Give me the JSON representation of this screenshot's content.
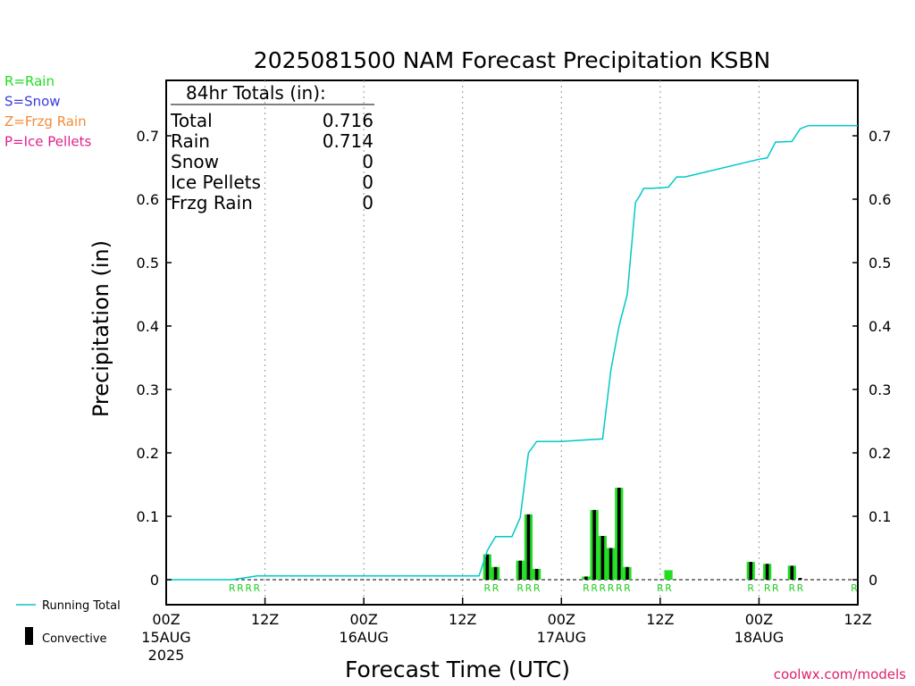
{
  "chart_data": {
    "type": "bar",
    "title": "2025081500 NAM Forecast Precipitation KSBN",
    "xlabel": "Forecast Time (UTC)",
    "ylabel": "Precipitation (in)",
    "ylim": [
      0,
      0.78
    ],
    "xlim_hours": [
      0,
      84
    ],
    "y_ticks": [
      "0",
      "0.1",
      "0.2",
      "0.3",
      "0.4",
      "0.5",
      "0.6",
      "0.7"
    ],
    "x_ticks": [
      {
        "hour": 0,
        "label": "00Z",
        "date": "15AUG",
        "year": "2025"
      },
      {
        "hour": 12,
        "label": "12Z",
        "date": "",
        "year": ""
      },
      {
        "hour": 24,
        "label": "00Z",
        "date": "16AUG",
        "year": ""
      },
      {
        "hour": 36,
        "label": "12Z",
        "date": "",
        "year": ""
      },
      {
        "hour": 48,
        "label": "00Z",
        "date": "17AUG",
        "year": ""
      },
      {
        "hour": 60,
        "label": "12Z",
        "date": "",
        "year": ""
      },
      {
        "hour": 72,
        "label": "00Z",
        "date": "18AUG",
        "year": ""
      },
      {
        "hour": 84,
        "label": "12Z",
        "date": "",
        "year": ""
      }
    ],
    "grid": "vertical dotted at 12h intervals",
    "totals_box": {
      "header": "84hr Totals (in):",
      "rows": [
        {
          "label": "Total",
          "value": "0.716"
        },
        {
          "label": "Rain",
          "value": "0.714"
        },
        {
          "label": "Snow",
          "value": "0"
        },
        {
          "label": "Ice Pellets",
          "value": "0"
        },
        {
          "label": "Frzg Rain",
          "value": "0"
        }
      ]
    },
    "ptype_legend": [
      {
        "label": "R=Rain",
        "color": "#22dd22"
      },
      {
        "label": "S=Snow",
        "color": "#3a3ae0"
      },
      {
        "label": "Z=Frzg Rain",
        "color": "#f08c3c"
      },
      {
        "label": "P=Ice Pellets",
        "color": "#e0208c"
      }
    ],
    "series_legend": [
      {
        "label": "Running Total",
        "color": "#00c8c8",
        "kind": "line"
      },
      {
        "label": "Convective",
        "color": "#000000",
        "kind": "bar"
      }
    ],
    "bar_series": {
      "name": "Convective",
      "hours": [
        39,
        40,
        43,
        44,
        45,
        51,
        52,
        53,
        54,
        55,
        56,
        61
      ],
      "total": [
        0.04,
        0.02,
        0.03,
        0.103,
        0.017,
        0.005,
        0.11,
        0.069,
        0.05,
        0.145,
        0.02,
        0.015
      ],
      "convective": [
        0.04,
        0.02,
        0.03,
        0.103,
        0.017,
        0.005,
        0.11,
        0.069,
        0.05,
        0.145,
        0.02,
        0.0
      ]
    },
    "extra_bars": {
      "hours": [
        71,
        73,
        76
      ],
      "total": [
        0.028,
        0.025,
        0.022
      ],
      "convective": [
        0.028,
        0.025,
        0.022
      ]
    },
    "trace_hours": [
      77
    ],
    "running_total": {
      "name": "Running Total",
      "hours": [
        0,
        8,
        10,
        11,
        38,
        39,
        40,
        42,
        43,
        44,
        45,
        48,
        53,
        54,
        55,
        56,
        57,
        57.5,
        58,
        59,
        61,
        62,
        63,
        72,
        73,
        74,
        76,
        77,
        78,
        84
      ],
      "values": [
        0,
        0,
        0.004,
        0.006,
        0.006,
        0.046,
        0.068,
        0.068,
        0.098,
        0.2,
        0.218,
        0.218,
        0.222,
        0.33,
        0.4,
        0.45,
        0.595,
        0.605,
        0.617,
        0.617,
        0.619,
        0.635,
        0.635,
        0.663,
        0.665,
        0.69,
        0.691,
        0.711,
        0.716,
        0.716
      ]
    },
    "ptype_labels": [
      {
        "hour": 8,
        "code": "R"
      },
      {
        "hour": 9,
        "code": "R"
      },
      {
        "hour": 10,
        "code": "R"
      },
      {
        "hour": 11,
        "code": "R"
      },
      {
        "hour": 39,
        "code": "R"
      },
      {
        "hour": 40,
        "code": "R"
      },
      {
        "hour": 43,
        "code": "R"
      },
      {
        "hour": 44,
        "code": "R"
      },
      {
        "hour": 45,
        "code": "R"
      },
      {
        "hour": 51,
        "code": "R"
      },
      {
        "hour": 52,
        "code": "R"
      },
      {
        "hour": 53,
        "code": "R"
      },
      {
        "hour": 54,
        "code": "R"
      },
      {
        "hour": 55,
        "code": "R"
      },
      {
        "hour": 56,
        "code": "R"
      },
      {
        "hour": 60,
        "code": "R"
      },
      {
        "hour": 61,
        "code": "R"
      },
      {
        "hour": 71,
        "code": "R"
      },
      {
        "hour": 73,
        "code": "R"
      },
      {
        "hour": 74,
        "code": "R"
      },
      {
        "hour": 76,
        "code": "R"
      },
      {
        "hour": 77,
        "code": "R"
      },
      {
        "hour": 84,
        "code": "R"
      }
    ],
    "credit": "coolwx.com/models"
  }
}
